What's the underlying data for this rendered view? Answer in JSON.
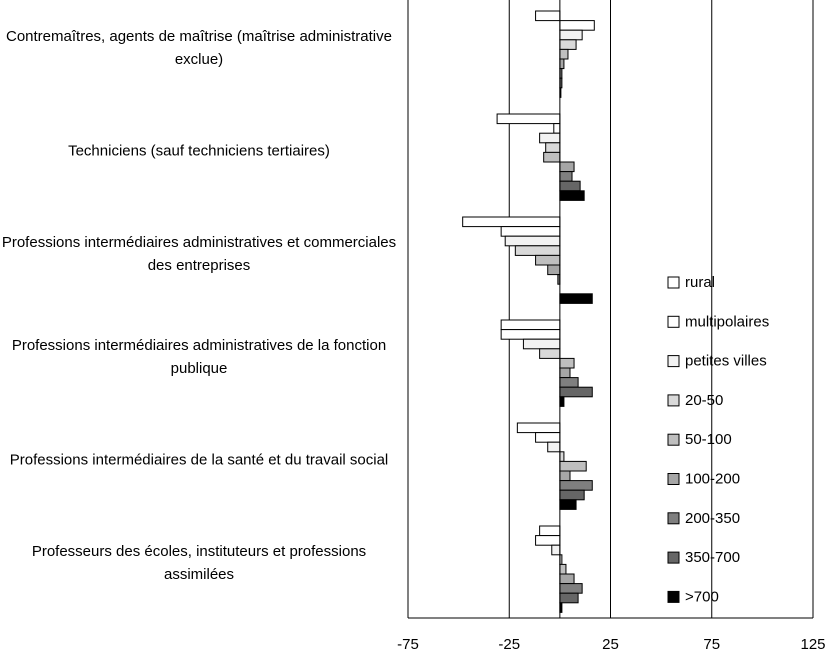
{
  "chart_data": {
    "type": "barh",
    "categories": [
      "Contremaîtres, agents de maîtrise (maîtrise administrative exclue)",
      "Techniciens (sauf techniciens tertiaires)",
      "Professions intermédiaires administratives et commerciales des entreprises",
      "Professions intermédiaires administratives de la fonction publique",
      "Professions intermédiaires de la santé et du travail social",
      "Professeurs des écoles, instituteurs et professions assimilées"
    ],
    "series": [
      {
        "name": "rural",
        "color": "#ffffff",
        "values": [
          -12,
          -31,
          -48,
          -29,
          -21,
          -10
        ]
      },
      {
        "name": "multipolaires",
        "color": "#ffffff",
        "values": [
          17,
          -3,
          -29,
          -29,
          -12,
          -12
        ]
      },
      {
        "name": "petites villes",
        "color": "#f2f2f2",
        "values": [
          11,
          -10,
          -27,
          -18,
          -6,
          -4
        ]
      },
      {
        "name": "20-50",
        "color": "#d9d9d9",
        "values": [
          8,
          -7,
          -22,
          -10,
          2,
          1
        ]
      },
      {
        "name": "50-100",
        "color": "#bfbfbf",
        "values": [
          4,
          -8,
          -12,
          7,
          13,
          3
        ]
      },
      {
        "name": "100-200",
        "color": "#a6a6a6",
        "values": [
          2,
          7,
          -6,
          5,
          5,
          7
        ]
      },
      {
        "name": "200-350",
        "color": "#7f7f7f",
        "values": [
          1,
          6,
          -1,
          9,
          16,
          11
        ]
      },
      {
        "name": "350-700",
        "color": "#666666",
        "values": [
          1,
          10,
          0,
          16,
          12,
          9
        ]
      },
      {
        "name": ">700",
        "color": "#000000",
        "values": [
          0.5,
          12,
          16,
          2,
          8,
          1
        ]
      }
    ],
    "xlim": [
      -75,
      125
    ],
    "xticks": [
      -75,
      -25,
      25,
      75,
      125
    ],
    "grid": true
  }
}
